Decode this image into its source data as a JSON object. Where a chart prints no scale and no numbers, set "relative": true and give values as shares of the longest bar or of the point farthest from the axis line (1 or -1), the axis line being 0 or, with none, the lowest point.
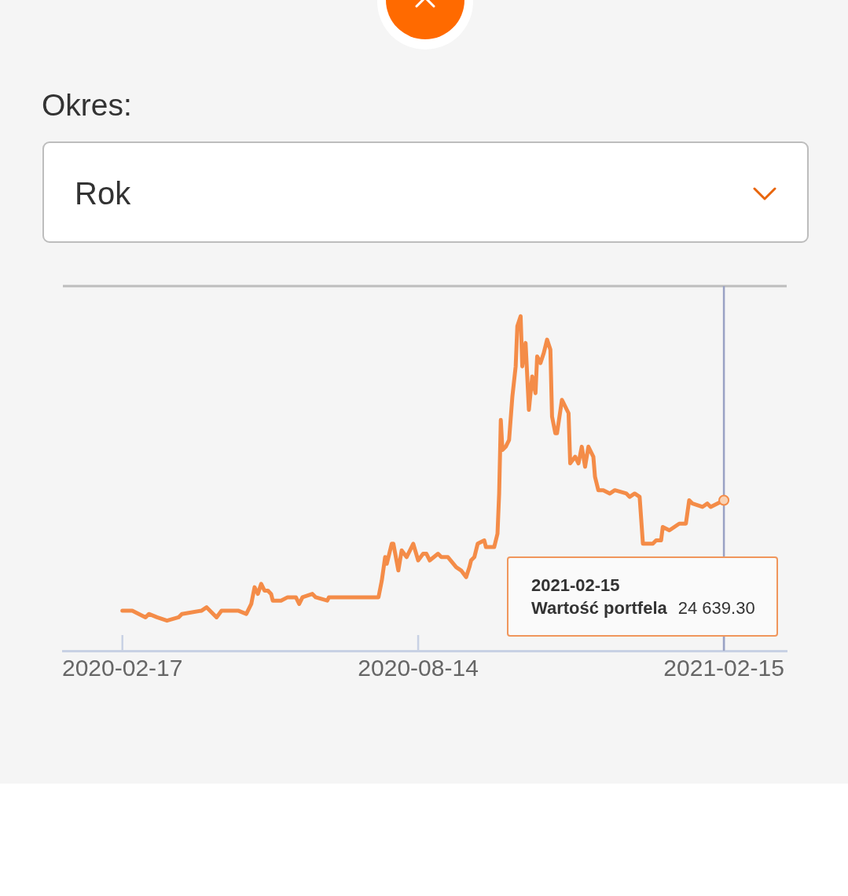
{
  "chart_data": {
    "type": "line",
    "annotations": [
      "Okres:",
      "Rok",
      "2021-02-15",
      "Wartość portfela",
      "24 639.30"
    ],
    "x": [
      "2020-02-17",
      "2020-02-23",
      "2020-03-02",
      "2020-03-04",
      "2020-03-09",
      "2020-03-15",
      "2020-03-22",
      "2020-03-24",
      "2020-04-05",
      "2020-04-08",
      "2020-04-10",
      "2020-04-14",
      "2020-04-17",
      "2020-04-22",
      "2020-04-27",
      "2020-05-02",
      "2020-05-05",
      "2020-05-07",
      "2020-05-09",
      "2020-05-11",
      "2020-05-13",
      "2020-05-15",
      "2020-05-17",
      "2020-05-18",
      "2020-05-23",
      "2020-05-27",
      "2020-06-01",
      "2020-06-03",
      "2020-06-05",
      "2020-06-11",
      "2020-06-13",
      "2020-06-20",
      "2020-06-21",
      "2020-06-25",
      "2020-06-29",
      "2020-07-02",
      "2020-07-14",
      "2020-07-15",
      "2020-07-21",
      "2020-07-23",
      "2020-07-25",
      "2020-07-26",
      "2020-07-29",
      "2020-07-30",
      "2020-08-02",
      "2020-08-04",
      "2020-08-07",
      "2020-08-09",
      "2020-08-11",
      "2020-08-14",
      "2020-08-17",
      "2020-08-19",
      "2020-08-21",
      "2020-08-26",
      "2020-08-28",
      "2020-09-01",
      "2020-09-06",
      "2020-09-09",
      "2020-09-12",
      "2020-09-14",
      "2020-09-15",
      "2020-09-17",
      "2020-09-19",
      "2020-09-23",
      "2020-09-24",
      "2020-09-29",
      "2020-10-01",
      "2020-10-02",
      "2020-10-03",
      "2020-10-04",
      "2020-10-06",
      "2020-10-08",
      "2020-10-10",
      "2020-10-12",
      "2020-10-13",
      "2020-10-15",
      "2020-10-16",
      "2020-10-18",
      "2020-10-20",
      "2020-10-22",
      "2020-10-24",
      "2020-10-25",
      "2020-10-27",
      "2020-10-29",
      "2020-10-31",
      "2020-11-02",
      "2020-11-03",
      "2020-11-05",
      "2020-11-06",
      "2020-11-09",
      "2020-11-13",
      "2020-11-14",
      "2020-11-17",
      "2020-11-19",
      "2020-11-21",
      "2020-11-23",
      "2020-11-25",
      "2020-11-28",
      "2020-11-29",
      "2020-12-01",
      "2020-12-04",
      "2020-12-08",
      "2020-12-11",
      "2020-12-18",
      "2020-12-20",
      "2020-12-23",
      "2020-12-26",
      "2020-12-28",
      "2021-01-03",
      "2021-01-05",
      "2021-01-08",
      "2021-01-09",
      "2021-01-13",
      "2021-01-19",
      "2021-01-23",
      "2021-01-25",
      "2021-01-27",
      "2021-02-02",
      "2021-02-05",
      "2021-02-07",
      "2021-02-11",
      "2021-02-15"
    ],
    "values": [
      0.12,
      0.12,
      0.1,
      0.11,
      0.1,
      0.09,
      0.1,
      0.11,
      0.12,
      0.13,
      0.12,
      0.1,
      0.12,
      0.12,
      0.12,
      0.11,
      0.14,
      0.19,
      0.17,
      0.2,
      0.18,
      0.18,
      0.17,
      0.15,
      0.15,
      0.16,
      0.16,
      0.14,
      0.16,
      0.17,
      0.16,
      0.15,
      0.16,
      0.16,
      0.16,
      0.16,
      0.16,
      0.16,
      0.16,
      0.21,
      0.28,
      0.26,
      0.32,
      0.32,
      0.24,
      0.3,
      0.28,
      0.3,
      0.32,
      0.27,
      0.29,
      0.29,
      0.27,
      0.29,
      0.28,
      0.28,
      0.25,
      0.24,
      0.22,
      0.25,
      0.27,
      0.28,
      0.32,
      0.33,
      0.31,
      0.31,
      0.35,
      0.47,
      0.69,
      0.6,
      0.61,
      0.63,
      0.76,
      0.85,
      0.97,
      1.0,
      0.85,
      0.92,
      0.72,
      0.82,
      0.77,
      0.88,
      0.86,
      0.89,
      0.93,
      0.9,
      0.7,
      0.65,
      0.65,
      0.75,
      0.71,
      0.56,
      0.58,
      0.56,
      0.61,
      0.55,
      0.61,
      0.58,
      0.52,
      0.48,
      0.48,
      0.47,
      0.48,
      0.47,
      0.46,
      0.47,
      0.46,
      0.32,
      0.32,
      0.33,
      0.33,
      0.37,
      0.36,
      0.38,
      0.38,
      0.45,
      0.44,
      0.43,
      0.44,
      0.43,
      0.44,
      0.45
    ],
    "color": "#f48c48",
    "relative": true,
    "xlim": [
      "2020-01-12",
      "2021-03-25"
    ],
    "xticks": [
      "2020-02-17",
      "2020-08-14",
      "2021-02-15"
    ],
    "ref_lines": [
      {
        "axis": "x",
        "value": "2021-02-15",
        "color": "#9aa2c4"
      }
    ]
  }
}
